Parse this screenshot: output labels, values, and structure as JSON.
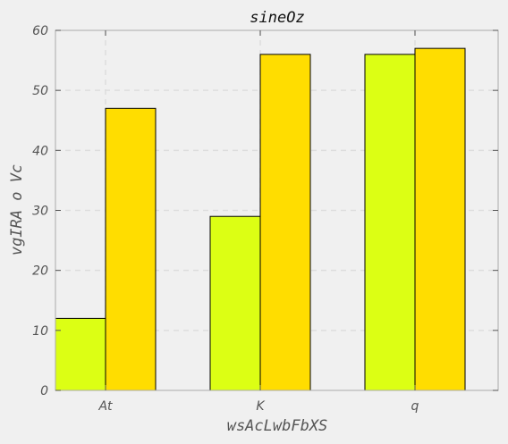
{
  "chart_data": {
    "type": "bar",
    "title": "sineOz",
    "xlabel": "wsAcLwbFbXS",
    "ylabel": "vgIRA o Vc",
    "categories": [
      "At",
      "K",
      "q"
    ],
    "series": [
      {
        "values": [
          12,
          29,
          56
        ],
        "color": "#dcff14"
      },
      {
        "values": [
          47,
          56,
          57
        ],
        "color": "#ffdd00"
      }
    ],
    "ylim": [
      0,
      60
    ],
    "yticks": [
      0,
      10,
      20,
      30,
      40,
      50,
      60
    ],
    "grid": true,
    "legend": "none"
  },
  "colors": {
    "background": "#f0f0f0",
    "grid": "#dddddd",
    "axis": "#aaaaaa"
  }
}
